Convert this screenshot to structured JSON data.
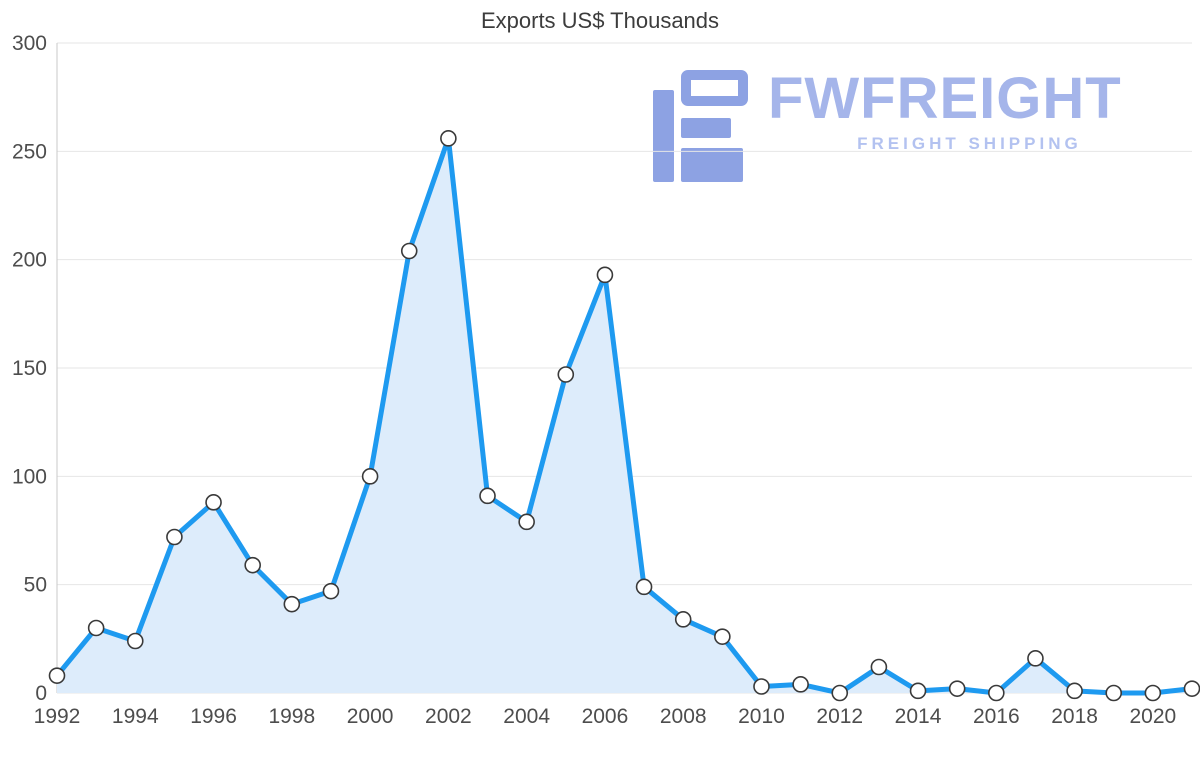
{
  "chart_data": {
    "type": "line",
    "title": "Exports US$ Thousands",
    "x": [
      1992,
      1993,
      1994,
      1995,
      1996,
      1997,
      1998,
      1999,
      2000,
      2001,
      2002,
      2003,
      2004,
      2005,
      2006,
      2007,
      2008,
      2009,
      2010,
      2011,
      2012,
      2013,
      2014,
      2015,
      2016,
      2017,
      2018,
      2019,
      2020,
      2021
    ],
    "series": [
      {
        "name": "Exports US$ Thousands",
        "values": [
          8,
          30,
          24,
          72,
          88,
          59,
          41,
          47,
          100,
          204,
          256,
          91,
          79,
          147,
          193,
          49,
          34,
          26,
          3,
          4,
          0,
          12,
          1,
          2,
          0,
          16,
          1,
          0,
          0,
          2
        ]
      }
    ],
    "xlabel": "",
    "ylabel": "",
    "ylim": [
      0,
      300
    ],
    "yticks": [
      0,
      50,
      100,
      150,
      200,
      250,
      300
    ],
    "xtick_step": 2,
    "grid": true,
    "legend": "none",
    "marker": "circle",
    "colors": {
      "line": "#1e9af0",
      "fill": "#ddecfb",
      "grid": "#e6e6e6",
      "axis": "#c9c9c9",
      "tick_text": "#4d4d4d",
      "title": "#3c3c3c",
      "marker_fill": "#ffffff",
      "marker_stroke": "#3a3a3a"
    }
  },
  "logo": {
    "name": "FWFREIGHT",
    "subtitle": "FREIGHT SHIPPING",
    "colors": {
      "glyph": "#8da2e3",
      "text": "#a5b5ea",
      "subtitle": "#b3c2f0"
    }
  }
}
